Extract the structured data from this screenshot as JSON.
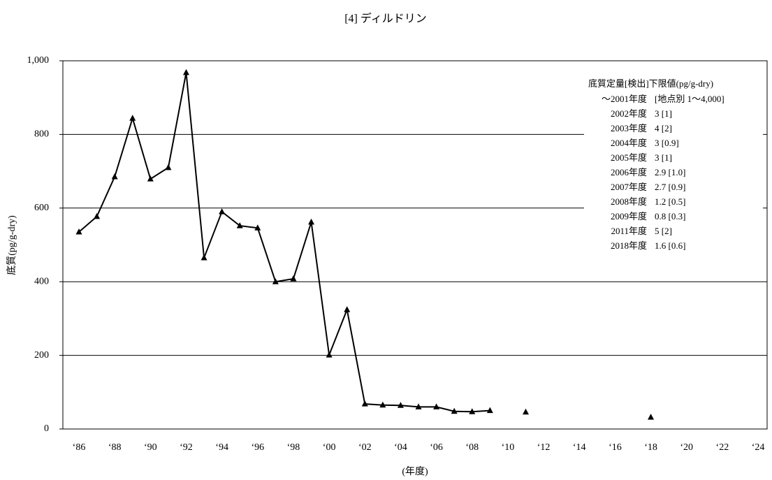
{
  "chart_data": {
    "type": "line",
    "title": "[4] ディルドリン",
    "ylabel": "底質(pg/g-dry)",
    "xlabel": "(年度)",
    "categories": [
      "‘86",
      null,
      "‘88",
      null,
      "‘90",
      null,
      "‘92",
      null,
      "‘94",
      null,
      "‘96",
      null,
      "‘98",
      null,
      "‘00",
      null,
      "‘02",
      null,
      "‘04",
      null,
      "‘06",
      null,
      "‘08",
      null,
      "‘10",
      null,
      "‘12",
      null,
      "‘14",
      null,
      "‘16",
      null,
      "‘18",
      null,
      "‘20",
      null,
      "‘22",
      null,
      "‘24"
    ],
    "values": [
      535,
      577,
      685,
      844,
      679,
      710,
      968,
      465,
      590,
      552,
      546,
      400,
      408,
      562,
      201,
      324,
      68,
      65,
      64,
      60,
      60,
      48,
      47,
      50,
      null,
      46,
      null,
      null,
      null,
      null,
      null,
      null,
      32,
      null,
      null,
      null,
      null,
      null,
      null
    ],
    "color": "#000000",
    "ylim": [
      0,
      1000
    ],
    "yticks": [
      0,
      {
        "value": 200,
        "label": "200"
      },
      {
        "value": 400,
        "label": "400"
      },
      {
        "value": 600,
        "label": "600"
      },
      {
        "value": 800,
        "label": "800"
      },
      {
        "value": 1000,
        "label": "1,000"
      }
    ],
    "grid": true,
    "annotation_title": "底質定量[検出]下限値(pg/g-dry)",
    "annotation_rows": [
      [
        "～2001年度",
        "[地点別 1～4,000]"
      ],
      [
        "2002年度",
        "3 [1]"
      ],
      [
        "2003年度",
        "4 [2]"
      ],
      [
        "2004年度",
        "3 [0.9]"
      ],
      [
        "2005年度",
        "3 [1]"
      ],
      [
        "2006年度",
        "2.9 [1.0]"
      ],
      [
        "2007年度",
        "2.7 [0.9]"
      ],
      [
        "2008年度",
        "1.2 [0.5]"
      ],
      [
        "2009年度",
        "0.8 [0.3]"
      ],
      [
        "2011年度",
        "5 [2]"
      ],
      [
        "2018年度",
        "1.6 [0.6]"
      ]
    ]
  }
}
